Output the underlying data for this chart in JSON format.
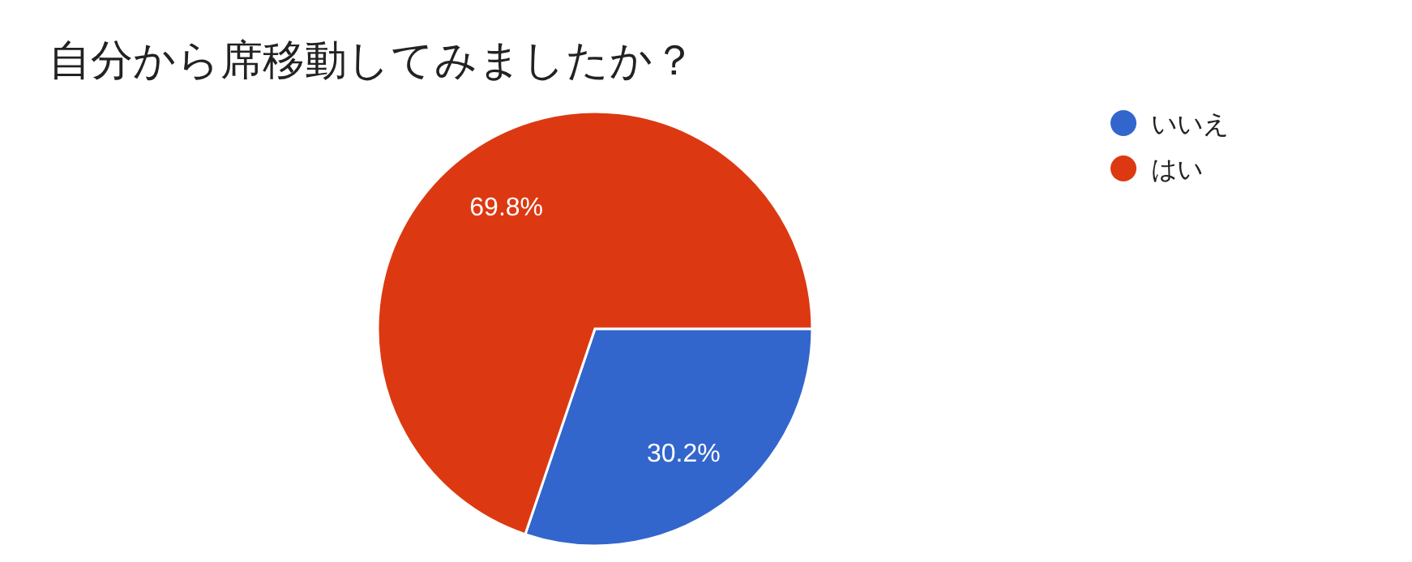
{
  "chart_data": {
    "type": "pie",
    "title": "自分から席移動してみましたか？",
    "categories": [
      "いいえ",
      "はい"
    ],
    "values": [
      30.2,
      69.8
    ],
    "colors": [
      "#3366cc",
      "#dc3912"
    ],
    "value_labels": [
      "30.2%",
      "69.8%"
    ],
    "legend": "top right"
  }
}
